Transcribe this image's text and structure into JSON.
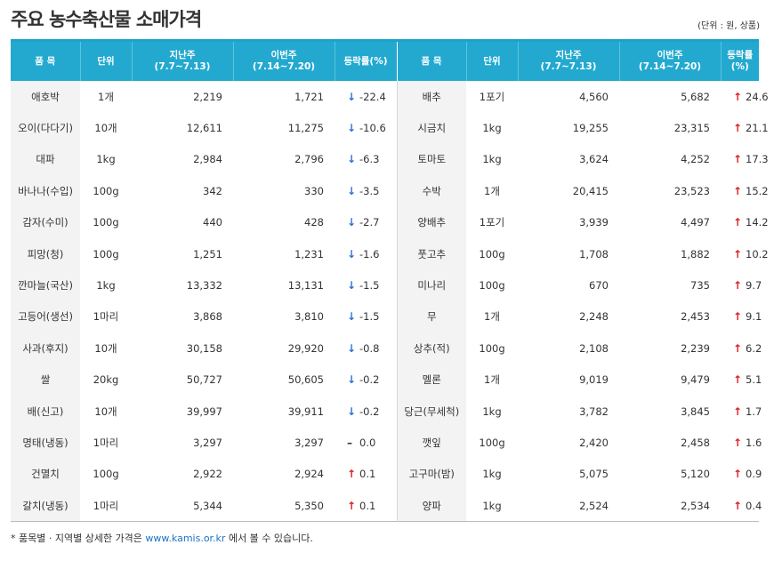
{
  "title": "주요 농수축산물 소매가격",
  "unit_note": "(단위 : 원, 상품)",
  "headers": {
    "item": "품 목",
    "unit": "단위",
    "last_week": "지난주",
    "last_week_range": "(7.7~7.13)",
    "this_week": "이번주",
    "this_week_range": "(7.14~7.20)",
    "change": "등락률(%)"
  },
  "rows": [
    {
      "left": {
        "name": "애호박",
        "unit": "1개",
        "last": "2,219",
        "this": "1,721",
        "dir": "down",
        "arrow": "↓",
        "rate": "-22.4"
      },
      "right": {
        "name": "배추",
        "unit": "1포기",
        "last": "4,560",
        "this": "5,682",
        "dir": "up",
        "arrow": "↑",
        "rate": "24.6"
      }
    },
    {
      "left": {
        "name": "오이(다다기)",
        "unit": "10개",
        "last": "12,611",
        "this": "11,275",
        "dir": "down",
        "arrow": "↓",
        "rate": "-10.6"
      },
      "right": {
        "name": "시금치",
        "unit": "1kg",
        "last": "19,255",
        "this": "23,315",
        "dir": "up",
        "arrow": "↑",
        "rate": "21.1"
      }
    },
    {
      "left": {
        "name": "대파",
        "unit": "1kg",
        "last": "2,984",
        "this": "2,796",
        "dir": "down",
        "arrow": "↓",
        "rate": "-6.3"
      },
      "right": {
        "name": "토마토",
        "unit": "1kg",
        "last": "3,624",
        "this": "4,252",
        "dir": "up",
        "arrow": "↑",
        "rate": "17.3"
      }
    },
    {
      "left": {
        "name": "바나나(수입)",
        "unit": "100g",
        "last": "342",
        "this": "330",
        "dir": "down",
        "arrow": "↓",
        "rate": "-3.5"
      },
      "right": {
        "name": "수박",
        "unit": "1개",
        "last": "20,415",
        "this": "23,523",
        "dir": "up",
        "arrow": "↑",
        "rate": "15.2"
      }
    },
    {
      "left": {
        "name": "감자(수미)",
        "unit": "100g",
        "last": "440",
        "this": "428",
        "dir": "down",
        "arrow": "↓",
        "rate": "-2.7"
      },
      "right": {
        "name": "양배추",
        "unit": "1포기",
        "last": "3,939",
        "this": "4,497",
        "dir": "up",
        "arrow": "↑",
        "rate": "14.2"
      }
    },
    {
      "left": {
        "name": "피망(청)",
        "unit": "100g",
        "last": "1,251",
        "this": "1,231",
        "dir": "down",
        "arrow": "↓",
        "rate": "-1.6"
      },
      "right": {
        "name": "풋고추",
        "unit": "100g",
        "last": "1,708",
        "this": "1,882",
        "dir": "up",
        "arrow": "↑",
        "rate": "10.2"
      }
    },
    {
      "left": {
        "name": "깐마늘(국산)",
        "unit": "1kg",
        "last": "13,332",
        "this": "13,131",
        "dir": "down",
        "arrow": "↓",
        "rate": "-1.5"
      },
      "right": {
        "name": "미나리",
        "unit": "100g",
        "last": "670",
        "this": "735",
        "dir": "up",
        "arrow": "↑",
        "rate": "9.7"
      }
    },
    {
      "left": {
        "name": "고등어(생선)",
        "unit": "1마리",
        "last": "3,868",
        "this": "3,810",
        "dir": "down",
        "arrow": "↓",
        "rate": "-1.5"
      },
      "right": {
        "name": "무",
        "unit": "1개",
        "last": "2,248",
        "this": "2,453",
        "dir": "up",
        "arrow": "↑",
        "rate": "9.1"
      }
    },
    {
      "left": {
        "name": "사과(후지)",
        "unit": "10개",
        "last": "30,158",
        "this": "29,920",
        "dir": "down",
        "arrow": "↓",
        "rate": "-0.8"
      },
      "right": {
        "name": "상추(적)",
        "unit": "100g",
        "last": "2,108",
        "this": "2,239",
        "dir": "up",
        "arrow": "↑",
        "rate": "6.2"
      }
    },
    {
      "left": {
        "name": "쌀",
        "unit": "20kg",
        "last": "50,727",
        "this": "50,605",
        "dir": "down",
        "arrow": "↓",
        "rate": "-0.2"
      },
      "right": {
        "name": "멜론",
        "unit": "1개",
        "last": "9,019",
        "this": "9,479",
        "dir": "up",
        "arrow": "↑",
        "rate": "5.1"
      }
    },
    {
      "left": {
        "name": "배(신고)",
        "unit": "10개",
        "last": "39,997",
        "this": "39,911",
        "dir": "down",
        "arrow": "↓",
        "rate": "-0.2"
      },
      "right": {
        "name": "당근(무세척)",
        "unit": "1kg",
        "last": "3,782",
        "this": "3,845",
        "dir": "up",
        "arrow": "↑",
        "rate": "1.7"
      }
    },
    {
      "left": {
        "name": "명태(냉동)",
        "unit": "1마리",
        "last": "3,297",
        "this": "3,297",
        "dir": "flat",
        "arrow": "–",
        "rate": "0.0"
      },
      "right": {
        "name": "깻잎",
        "unit": "100g",
        "last": "2,420",
        "this": "2,458",
        "dir": "up",
        "arrow": "↑",
        "rate": "1.6"
      }
    },
    {
      "left": {
        "name": "건멸치",
        "unit": "100g",
        "last": "2,922",
        "this": "2,924",
        "dir": "up",
        "arrow": "↑",
        "rate": "0.1"
      },
      "right": {
        "name": "고구마(밤)",
        "unit": "1kg",
        "last": "5,075",
        "this": "5,120",
        "dir": "up",
        "arrow": "↑",
        "rate": "0.9"
      }
    },
    {
      "left": {
        "name": "갈치(냉동)",
        "unit": "1마리",
        "last": "5,344",
        "this": "5,350",
        "dir": "up",
        "arrow": "↑",
        "rate": "0.1"
      },
      "right": {
        "name": "양파",
        "unit": "1kg",
        "last": "2,524",
        "this": "2,534",
        "dir": "up",
        "arrow": "↑",
        "rate": "0.4"
      }
    }
  ],
  "footnote": {
    "prefix": "* 품목별 · 지역별 상세한 가격은 ",
    "link": "www.kamis.or.kr",
    "suffix": " 에서 볼 수 있습니다."
  },
  "colors": {
    "header": "#23a9cf",
    "up": "#d9201f",
    "down": "#2f6fd6"
  }
}
